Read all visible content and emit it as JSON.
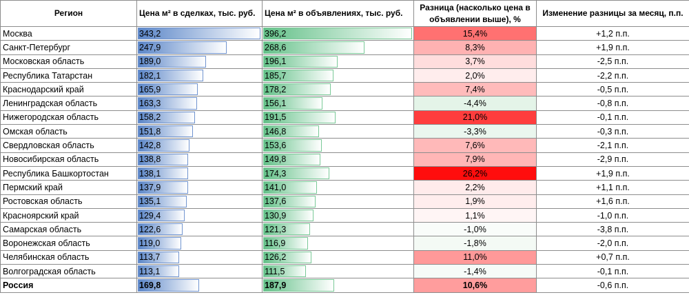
{
  "headers": {
    "region": "Регион",
    "deals": "Цена м² в сделках, тыс. руб.",
    "ads": "Цена м² в объявлениях, тыс. руб.",
    "diff": "Разница (насколько цена в объявлении выше), %",
    "change": "Изменение разницы за месяц, п.п."
  },
  "colors": {
    "deals_bar": "#5b86c8",
    "ads_bar": "#63c088",
    "diff_positive": "#ff0000",
    "diff_negative": "#63be7b"
  },
  "rows": [
    {
      "region": "Москва",
      "deals": "343,2",
      "ads": "396,2",
      "diff": "15,4%",
      "change": "+1,2 п.п."
    },
    {
      "region": "Санкт-Петербург",
      "deals": "247,9",
      "ads": "268,6",
      "diff": "8,3%",
      "change": "+1,9 п.п."
    },
    {
      "region": "Московская область",
      "deals": "189,0",
      "ads": "196,1",
      "diff": "3,7%",
      "change": "-2,5 п.п."
    },
    {
      "region": "Республика Татарстан",
      "deals": "182,1",
      "ads": "185,7",
      "diff": "2,0%",
      "change": "-2,2 п.п."
    },
    {
      "region": "Краснодарский край",
      "deals": "165,9",
      "ads": "178,2",
      "diff": "7,4%",
      "change": "-0,5 п.п."
    },
    {
      "region": "Ленинградская область",
      "deals": "163,3",
      "ads": "156,1",
      "diff": "-4,4%",
      "change": "-0,8 п.п."
    },
    {
      "region": "Нижегородская область",
      "deals": "158,2",
      "ads": "191,5",
      "diff": "21,0%",
      "change": "-0,1 п.п."
    },
    {
      "region": "Омская область",
      "deals": "151,8",
      "ads": "146,8",
      "diff": "-3,3%",
      "change": "-0,3 п.п."
    },
    {
      "region": "Свердловская область",
      "deals": "142,8",
      "ads": "153,6",
      "diff": "7,6%",
      "change": "-2,1 п.п."
    },
    {
      "region": "Новосибирская область",
      "deals": "138,8",
      "ads": "149,8",
      "diff": "7,9%",
      "change": "-2,9 п.п."
    },
    {
      "region": "Республика Башкортостан",
      "deals": "138,1",
      "ads": "174,3",
      "diff": "26,2%",
      "change": "+1,9 п.п."
    },
    {
      "region": "Пермский край",
      "deals": "137,9",
      "ads": "141,0",
      "diff": "2,2%",
      "change": "+1,1 п.п."
    },
    {
      "region": "Ростовская область",
      "deals": "135,1",
      "ads": "137,6",
      "diff": "1,9%",
      "change": "+1,6 п.п."
    },
    {
      "region": "Красноярский край",
      "deals": "129,4",
      "ads": "130,9",
      "diff": "1,1%",
      "change": "-1,0 п.п."
    },
    {
      "region": "Самарская область",
      "deals": "122,6",
      "ads": "121,3",
      "diff": "-1,0%",
      "change": "-3,8 п.п."
    },
    {
      "region": "Воронежская область",
      "deals": "119,0",
      "ads": "116,9",
      "diff": "-1,8%",
      "change": "-2,0 п.п."
    },
    {
      "region": "Челябинская область",
      "deals": "113,7",
      "ads": "126,2",
      "diff": "11,0%",
      "change": "+0,7 п.п."
    },
    {
      "region": "Волгоградская область",
      "deals": "113,1",
      "ads": "111,5",
      "diff": "-1,4%",
      "change": "-0,1 п.п."
    },
    {
      "region": "Россия",
      "deals": "169,8",
      "ads": "187,9",
      "diff": "10,6%",
      "change": "-0,6 п.п.",
      "total": true
    }
  ]
}
